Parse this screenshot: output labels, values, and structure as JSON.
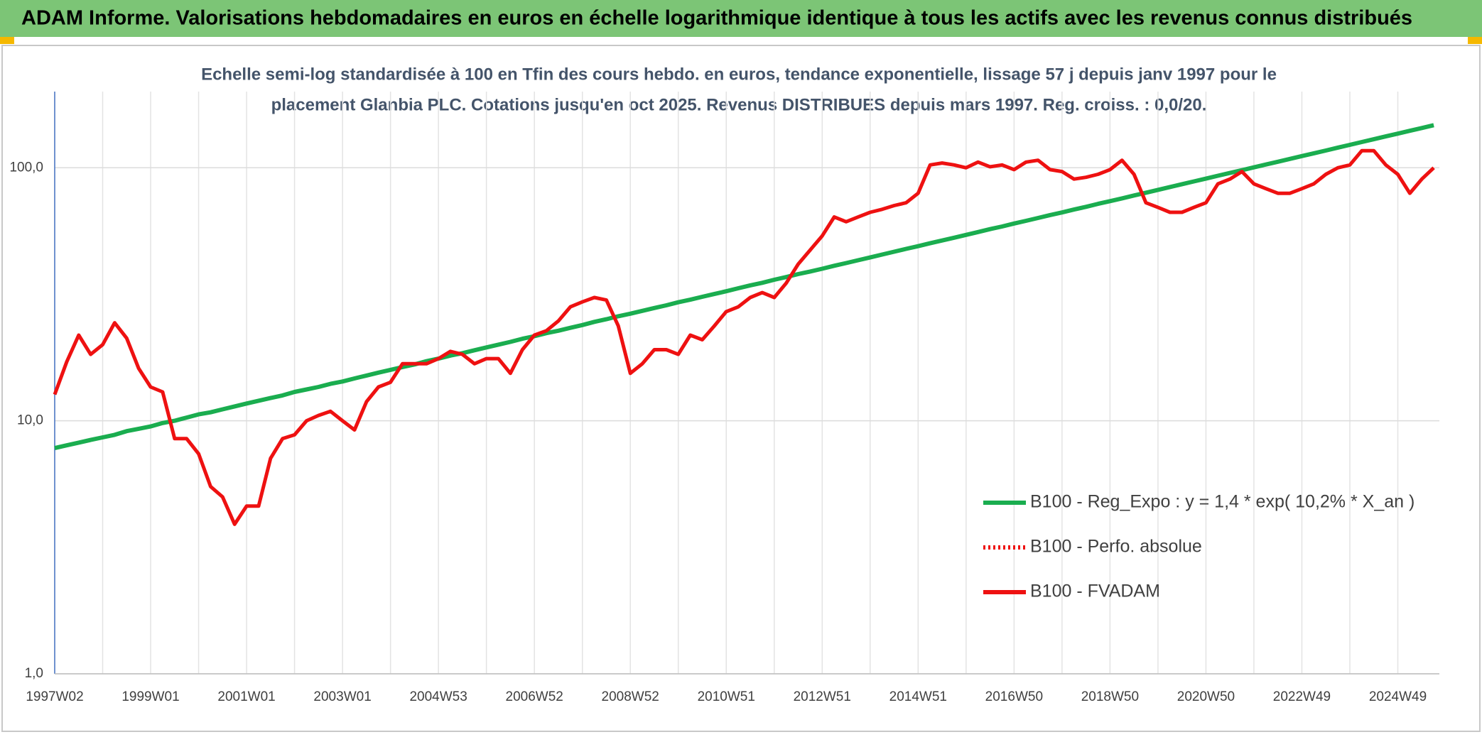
{
  "header": {
    "title": "ADAM Informe. Valorisations hebdomadaires en euros en échelle logarithmique identique à tous les actifs avec les revenus connus distribués"
  },
  "chart_data": {
    "type": "line",
    "subtitle": [
      "Echelle semi-log standardisée à 100 en Tfin des cours hebdo. en euros, tendance exponentielle, lissage 57 j depuis janv 1997 pour le",
      "placement Glanbia PLC. Cotations jusqu'en oct 2025. Revenus DISTRIBUES depuis mars 1997. Reg. croiss. : 0,0/20."
    ],
    "categories": [
      "1997W02",
      null,
      null,
      null,
      null,
      null,
      null,
      null,
      "1999W01",
      null,
      null,
      null,
      null,
      null,
      null,
      null,
      "2001W01",
      null,
      null,
      null,
      null,
      null,
      null,
      null,
      "2003W01",
      null,
      null,
      null,
      null,
      null,
      null,
      null,
      "2004W53",
      null,
      null,
      null,
      null,
      null,
      null,
      null,
      "2006W52",
      null,
      null,
      null,
      null,
      null,
      null,
      null,
      "2008W52",
      null,
      null,
      null,
      null,
      null,
      null,
      null,
      "2010W51",
      null,
      null,
      null,
      null,
      null,
      null,
      null,
      "2012W51",
      null,
      null,
      null,
      null,
      null,
      null,
      null,
      "2014W51",
      null,
      null,
      null,
      null,
      null,
      null,
      null,
      "2016W50",
      null,
      null,
      null,
      null,
      null,
      null,
      null,
      "2018W50",
      null,
      null,
      null,
      null,
      null,
      null,
      null,
      "2020W50",
      null,
      null,
      null,
      null,
      null,
      null,
      null,
      "2022W49",
      null,
      null,
      null,
      null,
      null,
      null,
      null,
      "2024W49",
      null,
      null,
      null
    ],
    "series": [
      {
        "name": "B100 - Reg_Expo : y = 1,4 * exp( 10,2% *  X_an )",
        "color": "#1aad4f",
        "dash": "solid",
        "values": [
          7.8,
          8.0,
          8.2,
          8.4,
          8.6,
          8.8,
          9.1,
          9.3,
          9.5,
          9.8,
          10.0,
          10.3,
          10.6,
          10.8,
          11.1,
          11.4,
          11.7,
          12.0,
          12.3,
          12.6,
          13.0,
          13.3,
          13.6,
          14.0,
          14.3,
          14.7,
          15.1,
          15.5,
          15.9,
          16.3,
          16.7,
          17.2,
          17.6,
          18.1,
          18.5,
          19.0,
          19.5,
          20.0,
          20.5,
          21.1,
          21.6,
          22.2,
          22.7,
          23.3,
          23.9,
          24.6,
          25.2,
          25.9,
          26.5,
          27.2,
          27.9,
          28.6,
          29.4,
          30.1,
          30.9,
          31.7,
          32.5,
          33.4,
          34.3,
          35.1,
          36.1,
          37.0,
          38.0,
          38.9,
          39.9,
          41.0,
          42.0,
          43.1,
          44.2,
          45.4,
          46.6,
          47.8,
          49.0,
          50.3,
          51.6,
          52.9,
          54.3,
          55.7,
          57.2,
          58.6,
          60.2,
          61.7,
          63.3,
          65.0,
          66.6,
          68.4,
          70.1,
          72.0,
          73.8,
          75.7,
          77.7,
          79.7,
          81.8,
          83.9,
          86.1,
          88.3,
          90.6,
          93.0,
          95.4,
          97.8,
          100.4,
          103.0,
          105.6,
          108.4,
          111.2,
          114.1,
          117.0,
          120.1,
          123.2,
          126.4,
          129.6,
          133.0,
          136.4,
          140.0,
          143.6,
          147.3
        ]
      },
      {
        "name": "B100 - Perfo. absolue",
        "color": "#ee1111",
        "dash": "dotted",
        "values": [
          null,
          null,
          null,
          null,
          null,
          null,
          null,
          null,
          null,
          null,
          null,
          null,
          null,
          null,
          null,
          null,
          null,
          null,
          null,
          null,
          null,
          null,
          null,
          null,
          null,
          null,
          null,
          null,
          null,
          null,
          null,
          null,
          null,
          null,
          null,
          null,
          null,
          null,
          null,
          null,
          null,
          null,
          null,
          null,
          null,
          null,
          null,
          null,
          null,
          null,
          null,
          null,
          null,
          null,
          null,
          null,
          null,
          null,
          null,
          null,
          null,
          null,
          null,
          null,
          null,
          null,
          null,
          null,
          null,
          null,
          null,
          null,
          null,
          null,
          null,
          null,
          null,
          null,
          null,
          null,
          null,
          null,
          null,
          null,
          null,
          null,
          null,
          null,
          null,
          null,
          null,
          null,
          null,
          null,
          null,
          null,
          null,
          null,
          null,
          null,
          null,
          null,
          null,
          null,
          null,
          null,
          null,
          null,
          null,
          null,
          null,
          null,
          null,
          null,
          null,
          null
        ]
      },
      {
        "name": "B100 - FVADAM",
        "color": "#ee1111",
        "dash": "solid",
        "values": [
          12.7,
          17.1,
          21.8,
          18.3,
          20.0,
          24.4,
          21.2,
          16.1,
          13.6,
          13.0,
          8.5,
          8.5,
          7.4,
          5.5,
          5.0,
          3.9,
          4.6,
          4.6,
          7.1,
          8.5,
          8.8,
          10.0,
          10.5,
          10.9,
          10.0,
          9.2,
          11.9,
          13.6,
          14.2,
          16.8,
          16.8,
          16.8,
          17.6,
          18.8,
          18.3,
          16.8,
          17.6,
          17.6,
          15.4,
          19.1,
          21.8,
          22.7,
          24.8,
          28.2,
          29.5,
          30.7,
          30.0,
          23.7,
          15.4,
          16.8,
          19.1,
          19.1,
          18.3,
          21.8,
          20.9,
          23.7,
          27.0,
          28.2,
          30.7,
          32.1,
          30.7,
          35.0,
          41.6,
          47.3,
          53.8,
          63.9,
          61.2,
          63.9,
          66.7,
          68.5,
          70.9,
          72.7,
          79.3,
          102.6,
          104.4,
          102.6,
          100.0,
          105.3,
          100.9,
          102.6,
          98.3,
          105.3,
          107.1,
          98.3,
          96.6,
          90.2,
          91.7,
          94.2,
          98.3,
          107.1,
          94.2,
          72.7,
          69.7,
          66.7,
          66.7,
          69.7,
          72.7,
          86.4,
          90.2,
          96.6,
          86.4,
          82.7,
          79.3,
          79.3,
          82.7,
          86.4,
          94.2,
          100.0,
          102.6,
          116.8,
          116.8,
          102.6,
          94.2,
          79.3,
          90.2,
          100.0
        ]
      }
    ],
    "ylim": [
      1,
      200
    ],
    "yticks": [
      {
        "value": 1,
        "label": "1,0"
      },
      {
        "value": 10,
        "label": "10,0"
      },
      {
        "value": 100,
        "label": "100,0"
      }
    ],
    "log_scale": true,
    "grid": true,
    "legend": "right"
  }
}
